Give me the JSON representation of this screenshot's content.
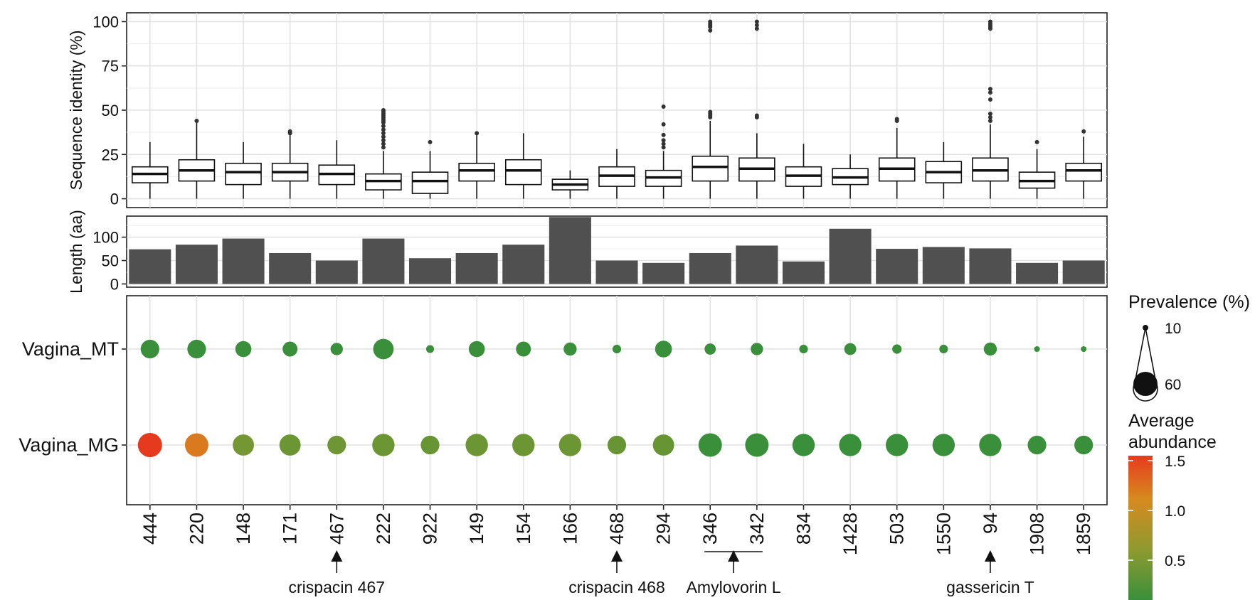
{
  "chart_data": [
    {
      "type": "box",
      "title": "",
      "ylabel": "Sequence identity (%)",
      "ylim": [
        -5,
        105
      ],
      "yticks": [
        0,
        25,
        50,
        75,
        100
      ],
      "grid": true,
      "categories": [
        "444",
        "220",
        "148",
        "171",
        "467",
        "222",
        "922",
        "149",
        "154",
        "166",
        "468",
        "294",
        "346",
        "342",
        "834",
        "1428",
        "503",
        "1550",
        "94",
        "1908",
        "1859"
      ],
      "boxes": [
        {
          "min": 0,
          "q1": 9,
          "median": 14,
          "q3": 18,
          "max": 32,
          "outliers": []
        },
        {
          "min": 0,
          "q1": 10,
          "median": 16,
          "q3": 22,
          "max": 43,
          "outliers": [
            44
          ]
        },
        {
          "min": 0,
          "q1": 8,
          "median": 15,
          "q3": 20,
          "max": 32,
          "outliers": []
        },
        {
          "min": 0,
          "q1": 10,
          "median": 15,
          "q3": 20,
          "max": 36,
          "outliers": [
            37,
            38
          ]
        },
        {
          "min": 0,
          "q1": 8,
          "median": 14,
          "q3": 19,
          "max": 33,
          "outliers": []
        },
        {
          "min": 0,
          "q1": 5,
          "median": 10,
          "q3": 14,
          "max": 27,
          "outliers": [
            29,
            31,
            33,
            35,
            37,
            39,
            41,
            43,
            44,
            45,
            46,
            47,
            48,
            49,
            50
          ]
        },
        {
          "min": 0,
          "q1": 3,
          "median": 10,
          "q3": 15,
          "max": 27,
          "outliers": [
            32
          ]
        },
        {
          "min": 0,
          "q1": 10,
          "median": 16,
          "q3": 20,
          "max": 36,
          "outliers": [
            37
          ]
        },
        {
          "min": 0,
          "q1": 8,
          "median": 16,
          "q3": 22,
          "max": 37,
          "outliers": []
        },
        {
          "min": 0,
          "q1": 5,
          "median": 8,
          "q3": 11,
          "max": 16,
          "outliers": []
        },
        {
          "min": 0,
          "q1": 7,
          "median": 13,
          "q3": 18,
          "max": 28,
          "outliers": []
        },
        {
          "min": 0,
          "q1": 7,
          "median": 12,
          "q3": 16,
          "max": 27,
          "outliers": [
            29,
            31,
            33,
            36,
            42,
            52
          ]
        },
        {
          "min": 0,
          "q1": 10,
          "median": 18,
          "q3": 24,
          "max": 44,
          "outliers": [
            46,
            47,
            48,
            49,
            95,
            97,
            98,
            99,
            100
          ]
        },
        {
          "min": 0,
          "q1": 10,
          "median": 17,
          "q3": 23,
          "max": 37,
          "outliers": [
            46,
            47,
            96,
            98,
            100
          ]
        },
        {
          "min": 0,
          "q1": 7,
          "median": 13,
          "q3": 18,
          "max": 31,
          "outliers": []
        },
        {
          "min": 0,
          "q1": 8,
          "median": 12,
          "q3": 17,
          "max": 25,
          "outliers": []
        },
        {
          "min": 0,
          "q1": 10,
          "median": 17,
          "q3": 23,
          "max": 40,
          "outliers": [
            44,
            45
          ]
        },
        {
          "min": 0,
          "q1": 9,
          "median": 15,
          "q3": 21,
          "max": 32,
          "outliers": []
        },
        {
          "min": 0,
          "q1": 10,
          "median": 16,
          "q3": 23,
          "max": 42,
          "outliers": [
            44,
            46,
            48,
            56,
            60,
            62,
            96,
            97,
            98,
            99,
            100
          ]
        },
        {
          "min": 0,
          "q1": 6,
          "median": 10,
          "q3": 15,
          "max": 28,
          "outliers": [
            32
          ]
        },
        {
          "min": 0,
          "q1": 10,
          "median": 16,
          "q3": 20,
          "max": 35,
          "outliers": [
            38
          ]
        }
      ]
    },
    {
      "type": "bar",
      "ylabel": "Length (aa)",
      "ylim": [
        -7,
        145
      ],
      "yticks": [
        0,
        50,
        100
      ],
      "categories": [
        "444",
        "220",
        "148",
        "171",
        "467",
        "222",
        "922",
        "149",
        "154",
        "166",
        "468",
        "294",
        "346",
        "342",
        "834",
        "1428",
        "503",
        "1550",
        "94",
        "1908",
        "1859"
      ],
      "values": [
        74,
        84,
        97,
        66,
        50,
        97,
        55,
        66,
        84,
        143,
        50,
        45,
        66,
        82,
        48,
        118,
        75,
        79,
        76,
        45,
        50
      ],
      "bar_color": "#505050"
    },
    {
      "type": "scatter",
      "rows": [
        "Vagina_MT",
        "Vagina_MG"
      ],
      "categories": [
        "444",
        "220",
        "148",
        "171",
        "467",
        "222",
        "922",
        "149",
        "154",
        "166",
        "468",
        "294",
        "346",
        "342",
        "834",
        "1428",
        "503",
        "1550",
        "94",
        "1908",
        "1859"
      ],
      "series": [
        {
          "name": "Vagina_MT",
          "prevalence": [
            45,
            45,
            38,
            35,
            28,
            50,
            16,
            38,
            35,
            30,
            18,
            40,
            25,
            28,
            18,
            27,
            20,
            18,
            30,
            10,
            10
          ],
          "abundance": [
            0.1,
            0.1,
            0.1,
            0.1,
            0.1,
            0.1,
            0.1,
            0.1,
            0.1,
            0.1,
            0.1,
            0.1,
            0.1,
            0.1,
            0.1,
            0.1,
            0.1,
            0.1,
            0.1,
            0.1,
            0.1
          ]
        },
        {
          "name": "Vagina_MG",
          "prevalence": [
            60,
            58,
            52,
            52,
            45,
            55,
            45,
            55,
            55,
            55,
            45,
            52,
            58,
            58,
            55,
            55,
            55,
            55,
            55,
            45,
            45
          ],
          "abundance": [
            1.55,
            1.2,
            0.45,
            0.4,
            0.42,
            0.4,
            0.38,
            0.4,
            0.4,
            0.4,
            0.38,
            0.38,
            0.1,
            0.1,
            0.1,
            0.1,
            0.1,
            0.1,
            0.1,
            0.1,
            0.1
          ]
        }
      ],
      "legend": {
        "size_title": "Prevalence (%)",
        "size_labels": [
          "10",
          "60"
        ],
        "color_title_line1": "Average",
        "color_title_line2": "abundance",
        "color_ticks": [
          "1.5",
          "1.0",
          "0.5"
        ],
        "color_tick_values": [
          1.5,
          1.0,
          0.5
        ],
        "color_range": [
          0.1,
          1.55
        ],
        "color_stops": [
          "#3a8f3a",
          "#8e9a30",
          "#d78a1e",
          "#e63a1e"
        ],
        "placement": "right"
      }
    }
  ],
  "annotations": [
    {
      "label": "crispacin 467",
      "target": "467"
    },
    {
      "label": "crispacin 468",
      "target": "468"
    },
    {
      "label": "Amylovorin L",
      "target_range": [
        "346",
        "342"
      ]
    },
    {
      "label": "gassericin T",
      "target": "94"
    }
  ]
}
